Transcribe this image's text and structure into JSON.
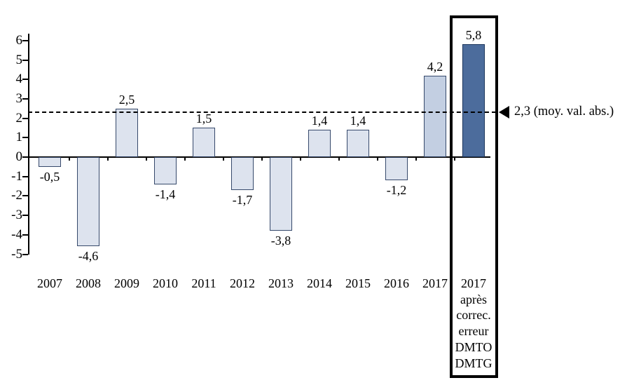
{
  "chart_data": {
    "type": "bar",
    "categories": [
      "2007",
      "2008",
      "2009",
      "2010",
      "2011",
      "2012",
      "2013",
      "2014",
      "2015",
      "2016",
      "2017",
      "2017 après correc. erreur DMTO DMTG"
    ],
    "values": [
      -0.5,
      -4.6,
      2.5,
      -1.4,
      1.5,
      -1.7,
      -3.8,
      1.4,
      1.4,
      -1.2,
      4.2,
      5.8
    ],
    "value_labels": [
      "-0,5",
      "-4,6",
      "2,5",
      "-1,4",
      "1,5",
      "-1,7",
      "-3,8",
      "1,4",
      "1,4",
      "-1,2",
      "4,2",
      "5,8"
    ],
    "last_category_lines": [
      "2017",
      "après",
      "correc.",
      "erreur",
      "DMTO",
      "DMTG"
    ],
    "ylim": [
      -5,
      6
    ],
    "yticks": [
      6,
      5,
      4,
      3,
      2,
      1,
      0,
      -1,
      -2,
      -3,
      -4,
      -5
    ],
    "ytick_labels": [
      "6",
      "5",
      "4",
      "3",
      "2",
      "1",
      "0",
      "-1",
      "-2",
      "-3",
      "-4",
      "-5"
    ],
    "xlabel": "",
    "ylabel": "",
    "title": "",
    "grid": false,
    "legend": null,
    "reference_line": {
      "value": 2.3,
      "label": "2,3 (moy. val. abs.)",
      "style": "dashed"
    },
    "highlight_index": 11,
    "highlight_box": true,
    "colors": {
      "bar_fill_default": "#dde3ee",
      "bar_fill_2017": "#c3cfe2",
      "bar_fill_highlight": "#4c6c9c",
      "bar_border_default": "#36496b",
      "bar_border_highlight": "#1c355c",
      "axis": "#000000",
      "text": "#000000",
      "background": "#ffffff"
    },
    "bar_fills": [
      "#dde3ee",
      "#dde3ee",
      "#dde3ee",
      "#dde3ee",
      "#dde3ee",
      "#dde3ee",
      "#dde3ee",
      "#dde3ee",
      "#dde3ee",
      "#dde3ee",
      "#c3cfe2",
      "#4c6c9c"
    ]
  }
}
